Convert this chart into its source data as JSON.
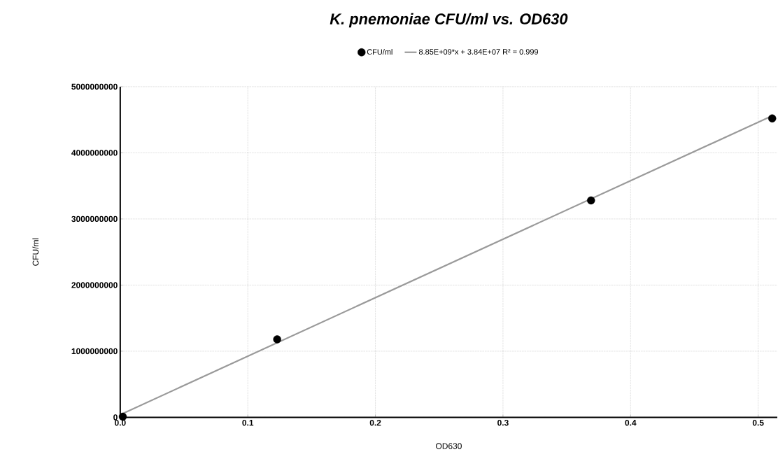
{
  "chart_data": {
    "type": "scatter",
    "title": "K. pnemoniae CFU/ml vs. OD630",
    "xlabel": "OD630",
    "ylabel": "CFU/ml",
    "xlim": [
      0,
      0.515
    ],
    "ylim": [
      0,
      5000000000
    ],
    "xticks": [
      {
        "value": 0,
        "label": "0.0"
      },
      0.1,
      0.2,
      0.3,
      0.4,
      0.5
    ],
    "yticks": [
      0,
      1000000000,
      2000000000,
      3000000000,
      4000000000,
      5000000000
    ],
    "grid": true,
    "legend": "top",
    "series": [
      {
        "name": "CFU/ml",
        "marker": "circle",
        "color": "#000000",
        "x": [
          0.002,
          0.123,
          0.369,
          0.511
        ],
        "values": [
          10000000,
          1180000000,
          3280000000,
          4520000000
        ]
      },
      {
        "name": "8.85E+09*x + 3.84E+07 R² = 0.999",
        "type": "line",
        "marker": "none",
        "line_style": "solid",
        "color": "#9a9a9a",
        "x": [
          0,
          0.511
        ],
        "values": [
          40000000,
          4560000000
        ]
      }
    ]
  }
}
